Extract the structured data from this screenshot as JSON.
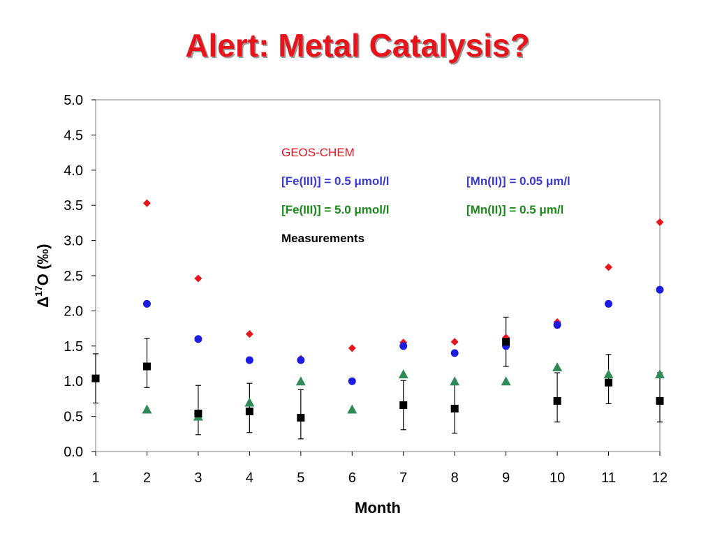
{
  "slide": {
    "title": "Alert: Metal Catalysis?"
  },
  "colors": {
    "title": "#e8141c",
    "geos_chem": "#e8141c",
    "case1": "#1c1ce0",
    "case2": "#2e8b57",
    "measurements": "#000000",
    "case1_text": "#3a3ad6",
    "case2_text": "#1b8a1b"
  },
  "chart_data": {
    "type": "scatter",
    "title": "",
    "xlabel": "Month",
    "ylabel_symbol": "Δ",
    "ylabel_superscript": "17",
    "ylabel_text": "O (‰)",
    "x_ticks": [
      "1",
      "2",
      "3",
      "4",
      "5",
      "6",
      "7",
      "8",
      "9",
      "10",
      "11",
      "12"
    ],
    "y_ticks": [
      "0.0",
      "0.5",
      "1.0",
      "1.5",
      "2.0",
      "2.5",
      "3.0",
      "3.5",
      "4.0",
      "4.5",
      "5.0"
    ],
    "xlim": [
      1,
      12
    ],
    "ylim": [
      0,
      5
    ],
    "grid": false,
    "legend_placement": "upper-center inside plot",
    "legend": {
      "heading": "GEOS-CHEM",
      "case1_fe": "[Fe(III)] = 0.5 μmol/l",
      "case1_mn": "[Mn(II)] = 0.05 μm/l",
      "case2_fe": "[Fe(III)] = 5.0 μmol/l",
      "case2_mn": "[Mn(II)] = 0.5 μm/l",
      "measurements": "Measurements"
    },
    "series": [
      {
        "key": "geos_chem",
        "marker": "diamond",
        "points": [
          [
            2,
            3.53
          ],
          [
            3,
            2.46
          ],
          [
            4,
            1.67
          ],
          [
            5,
            1.32
          ],
          [
            6,
            1.47
          ],
          [
            7,
            1.55
          ],
          [
            8,
            1.56
          ],
          [
            9,
            1.62
          ],
          [
            10,
            1.84
          ],
          [
            11,
            2.62
          ],
          [
            12,
            3.26
          ]
        ]
      },
      {
        "key": "case1",
        "marker": "circle",
        "points": [
          [
            2,
            2.1
          ],
          [
            3,
            1.6
          ],
          [
            4,
            1.3
          ],
          [
            5,
            1.3
          ],
          [
            6,
            1.0
          ],
          [
            7,
            1.5
          ],
          [
            8,
            1.4
          ],
          [
            9,
            1.5
          ],
          [
            10,
            1.8
          ],
          [
            11,
            2.1
          ],
          [
            12,
            2.3
          ]
        ]
      },
      {
        "key": "case2",
        "marker": "triangle",
        "points": [
          [
            2,
            0.6
          ],
          [
            3,
            0.5
          ],
          [
            4,
            0.7
          ],
          [
            5,
            1.0
          ],
          [
            6,
            0.6
          ],
          [
            7,
            1.1
          ],
          [
            8,
            1.0
          ],
          [
            9,
            1.0
          ],
          [
            10,
            1.2
          ],
          [
            11,
            1.1
          ],
          [
            12,
            1.1
          ]
        ]
      },
      {
        "key": "measurements",
        "marker": "square",
        "error_bar": 0.35,
        "points": [
          [
            1,
            1.04
          ],
          [
            2,
            1.21
          ],
          [
            3,
            0.54
          ],
          [
            4,
            0.57
          ],
          [
            5,
            0.48
          ],
          [
            7,
            0.66
          ],
          [
            8,
            0.61
          ],
          [
            9,
            1.56
          ],
          [
            10,
            0.72
          ],
          [
            11,
            0.98
          ],
          [
            12,
            0.72
          ]
        ],
        "error_bars": [
          [
            1,
            1.04
          ],
          [
            2,
            1.26
          ],
          [
            3,
            0.59
          ],
          [
            4,
            0.62
          ],
          [
            5,
            0.53
          ],
          [
            7,
            0.66
          ],
          [
            8,
            0.61
          ],
          [
            9,
            1.56
          ],
          [
            10,
            0.77
          ],
          [
            11,
            1.03
          ],
          [
            12,
            0.77
          ]
        ]
      }
    ]
  }
}
